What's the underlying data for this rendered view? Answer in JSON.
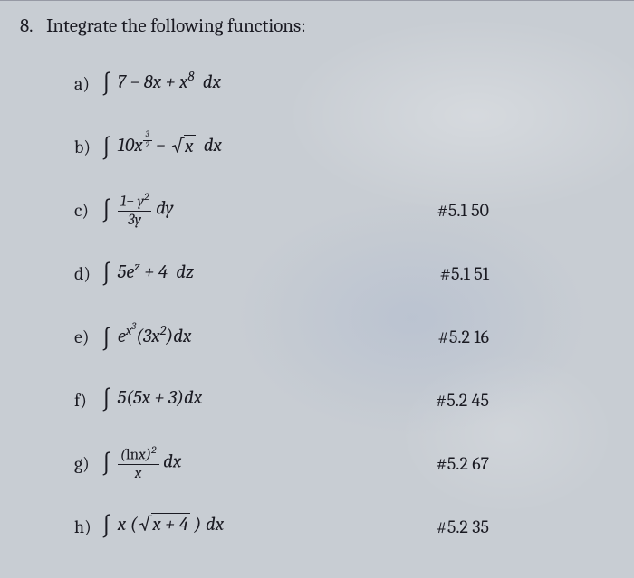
{
  "question": {
    "number": "8.",
    "text": "Integrate the following functions:"
  },
  "colors": {
    "text": "#1a1a22",
    "background": "#c8cdd3"
  },
  "fontsize_pt": {
    "body": 20,
    "math": 21,
    "fraction": 17,
    "integral": 26
  },
  "items": [
    {
      "label": "a)",
      "expr_html": "<span class='int'>∫</span> 7 − 8<i>x</i> + <i>x</i><sup>8</sup>&nbsp; <i>d</i><i>x</i>",
      "ref": ""
    },
    {
      "label": "b)",
      "expr_html": "<span class='int'>∫</span> 10<i>x</i><sup><span class='frac' style='font-size:9px;'><span class='num'>3</span><span class='den'>2</span></span></sup> − <span class='sqrt'><span class='rad'><i>x</i></span></span>&nbsp; <i>d</i><i>x</i>",
      "ref": ""
    },
    {
      "label": "c)",
      "expr_html": "<span class='int'>∫</span> <span class='frac'><span class='num'>1− <i>y</i><sup>2</sup></span><span class='den'>3<i>y</i></span></span> <i>d</i><i>y</i>",
      "ref": "#5.1 50"
    },
    {
      "label": "d)",
      "expr_html": "<span class='int'>∫</span> 5<i>e</i><sup><i>z</i></sup> + 4&nbsp; <i>d</i><i>z</i>",
      "ref": "#5.1 51"
    },
    {
      "label": "e)",
      "expr_html": "<span class='int'>∫</span> <i>e</i><sup><i>x</i><sup style='font-size:0.75em'>3</sup></sup>(3<i>x</i><sup>2</sup>)<i>d</i><i>x</i>",
      "ref": "#5.2 16"
    },
    {
      "label": "f)",
      "expr_html": "<span class='int'>∫</span> 5(5<i>x</i> + 3)<i>d</i><i>x</i>",
      "ref": "#5.2 45"
    },
    {
      "label": "g)",
      "expr_html": "<span class='int'>∫</span> <span class='frac'><span class='num'>(<span class='rm'>ln</span><i>x</i>)<sup>2</sup></span><span class='den'><i>x</i></span></span>&nbsp;<i>d</i><i>x</i>",
      "ref": "#5.2 67"
    },
    {
      "label": "h)",
      "expr_html": "<span class='int'>∫</span> <i>x</i> (<span class='sqrt'><span class='rad'><i>x</i> + 4</span></span> ) <i>d</i><i>x</i>",
      "ref": "#5.2 35"
    }
  ]
}
